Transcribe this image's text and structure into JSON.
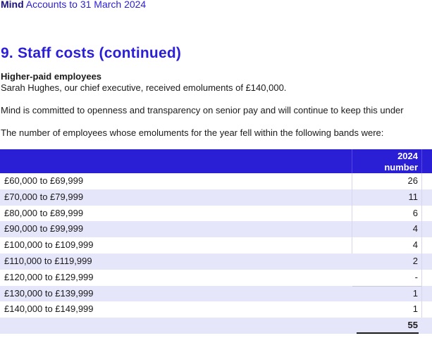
{
  "header": {
    "brand": "Mind",
    "subtitle": "Accounts to 31 March 2024"
  },
  "title": "9. Staff costs (continued)",
  "section": {
    "heading": "Higher-paid employees",
    "para1": "Sarah Hughes, our chief executive, received emoluments of £140,000.",
    "para2": "Mind is committed to openness and transparency on senior pay and will continue to keep this under",
    "para3": "The number of employees whose emoluments for the year fell within the following bands were:"
  },
  "table": {
    "header": {
      "year": "2024",
      "unit": "number"
    },
    "rows": [
      {
        "band": "£60,000 to £69,999",
        "value": "26"
      },
      {
        "band": "£70,000 to £79,999",
        "value": "11"
      },
      {
        "band": "£80,000 to £89,999",
        "value": "6"
      },
      {
        "band": "£90,000 to £99,999",
        "value": "4"
      },
      {
        "band": "£100,000 to £109,999",
        "value": "4"
      },
      {
        "band": "£110,000 to £119,999",
        "value": "2"
      },
      {
        "band": "£120,000 to £129,999",
        "value": "-"
      },
      {
        "band": "£130,000 to £139,999",
        "value": "1"
      },
      {
        "band": "£140,000 to £149,999",
        "value": "1"
      }
    ],
    "total": "55"
  },
  "colors": {
    "accent": "#2b1fd6",
    "row_alt": "#e6e6fb"
  }
}
